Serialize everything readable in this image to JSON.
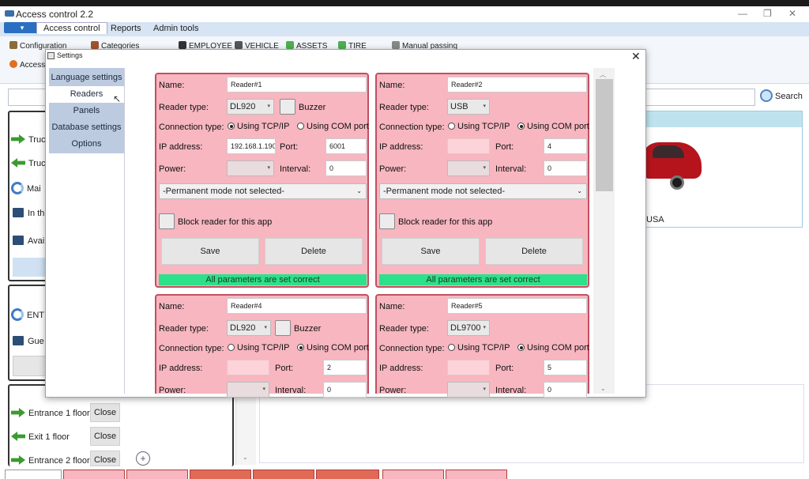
{
  "app": {
    "title": "Access control 2.2"
  },
  "menu": {
    "tabs": [
      "Access control",
      "Reports",
      "Admin tools"
    ]
  },
  "ribbon": {
    "items": [
      "Configuration",
      "Categories",
      "EMPLOYEE",
      "VEHICLE",
      "ASSETS",
      "TIRE",
      "Manual passing"
    ],
    "second_row": "Access"
  },
  "search": {
    "button_label": "Search"
  },
  "background": {
    "panel1_rows": [
      "Truc",
      "Truc",
      "Mai",
      "In th",
      "Avai"
    ],
    "panel2_rows": [
      "ENT",
      "Gue"
    ],
    "floor_rows": [
      {
        "label": "Entrance 1 floor",
        "button": "Close"
      },
      {
        "label": "Exit 1 floor",
        "button": "Close"
      },
      {
        "label": "Entrance 2 floor",
        "button": "Close"
      }
    ],
    "car_caption": "USA"
  },
  "dialog": {
    "title": "Settings",
    "close_glyph": "✕",
    "nav": [
      "Language settings",
      "Readers",
      "Panels",
      "Database settings",
      "Options"
    ],
    "active_nav": "Readers"
  },
  "labels": {
    "name": "Name:",
    "reader_type": "Reader type:",
    "buzzer": "Buzzer",
    "connection_type": "Connection type:",
    "tcp": "Using TCP/IP",
    "com": "Using COM port",
    "ip": "IP address:",
    "port": "Port:",
    "power": "Power:",
    "interval": "Interval:",
    "block": "Block reader for this app",
    "save": "Save",
    "delete": "Delete"
  },
  "readers": [
    {
      "name": "Reader#1",
      "type": "DL920",
      "connection": "tcp",
      "ip": "192.168.1.190",
      "port": "6001",
      "interval": "0",
      "mode": "-Permanent mode not selected-",
      "status": "All parameters are set correct"
    },
    {
      "name": "Reader#2",
      "type": "USB",
      "connection": "com",
      "ip": "",
      "port": "4",
      "interval": "0",
      "mode": "-Permanent mode not selected-",
      "status": "All parameters are set correct"
    },
    {
      "name": "Reader#4",
      "type": "DL920",
      "connection": "com",
      "ip": "",
      "port": "2",
      "interval": "0"
    },
    {
      "name": "Reader#5",
      "type": "DL9700",
      "connection": "com",
      "ip": "",
      "port": "5",
      "interval": "0"
    }
  ],
  "colors": {
    "card_bg": "#f7b6c0",
    "card_border": "#c25060",
    "status_ok": "#2de08a",
    "nav_bg": "#bccbe0",
    "menu_bg": "#d6e4f3"
  }
}
